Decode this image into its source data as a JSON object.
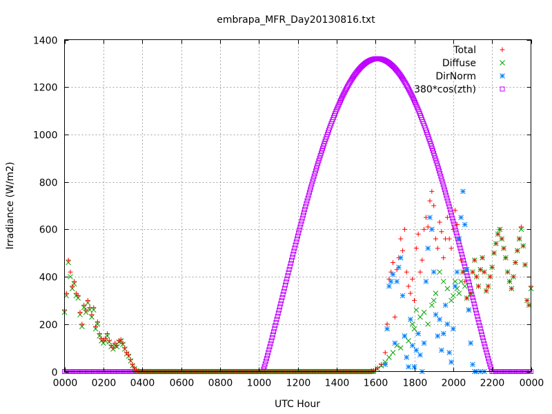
{
  "chart_data": {
    "type": "scatter",
    "title": "embrapa_MFR_Day20130816.txt",
    "xlabel": "UTC Hour",
    "ylabel": "Irradiance (W/m2)",
    "xlim": [
      0,
      24
    ],
    "ylim": [
      0,
      1400
    ],
    "x_ticks": [
      {
        "v": 0,
        "label": "0000"
      },
      {
        "v": 2,
        "label": "0200"
      },
      {
        "v": 4,
        "label": "0400"
      },
      {
        "v": 6,
        "label": "0600"
      },
      {
        "v": 8,
        "label": "0800"
      },
      {
        "v": 10,
        "label": "1000"
      },
      {
        "v": 12,
        "label": "1200"
      },
      {
        "v": 14,
        "label": "1400"
      },
      {
        "v": 16,
        "label": "1600"
      },
      {
        "v": 18,
        "label": "1800"
      },
      {
        "v": 20,
        "label": "2000"
      },
      {
        "v": 22,
        "label": "2200"
      },
      {
        "v": 24,
        "label": "0000"
      }
    ],
    "y_ticks": [
      {
        "v": 0,
        "label": "0"
      },
      {
        "v": 200,
        "label": "200"
      },
      {
        "v": 400,
        "label": "400"
      },
      {
        "v": 600,
        "label": "600"
      },
      {
        "v": 800,
        "label": "800"
      },
      {
        "v": 1000,
        "label": "1000"
      },
      {
        "v": 1200,
        "label": "1200"
      },
      {
        "v": 1400,
        "label": "1400"
      }
    ],
    "grid": true,
    "legend_position": "top-right",
    "series": [
      {
        "name": "Total",
        "marker": "plus",
        "color": "#ff0000",
        "points": [
          [
            0.0,
            260
          ],
          [
            0.1,
            330
          ],
          [
            0.2,
            470
          ],
          [
            0.3,
            420
          ],
          [
            0.4,
            360
          ],
          [
            0.5,
            380
          ],
          [
            0.6,
            330
          ],
          [
            0.7,
            320
          ],
          [
            0.8,
            250
          ],
          [
            0.9,
            200
          ],
          [
            1.0,
            280
          ],
          [
            1.1,
            260
          ],
          [
            1.2,
            300
          ],
          [
            1.3,
            270
          ],
          [
            1.4,
            240
          ],
          [
            1.5,
            270
          ],
          [
            1.6,
            190
          ],
          [
            1.7,
            210
          ],
          [
            1.8,
            160
          ],
          [
            1.9,
            140
          ],
          [
            2.0,
            130
          ],
          [
            2.1,
            140
          ],
          [
            2.2,
            160
          ],
          [
            2.3,
            130
          ],
          [
            2.4,
            110
          ],
          [
            2.5,
            100
          ],
          [
            2.6,
            120
          ],
          [
            2.7,
            110
          ],
          [
            2.8,
            130
          ],
          [
            2.9,
            135
          ],
          [
            3.0,
            120
          ],
          [
            3.1,
            100
          ],
          [
            3.2,
            80
          ],
          [
            3.3,
            70
          ],
          [
            3.4,
            50
          ],
          [
            3.5,
            30
          ],
          [
            3.6,
            15
          ],
          [
            3.7,
            5
          ],
          [
            15.9,
            5
          ],
          [
            16.1,
            15
          ],
          [
            16.3,
            30
          ],
          [
            16.5,
            80
          ],
          [
            16.6,
            200
          ],
          [
            16.7,
            390
          ],
          [
            16.8,
            420
          ],
          [
            16.9,
            460
          ],
          [
            17.0,
            230
          ],
          [
            17.1,
            430
          ],
          [
            17.2,
            480
          ],
          [
            17.3,
            560
          ],
          [
            17.4,
            510
          ],
          [
            17.5,
            600
          ],
          [
            17.6,
            420
          ],
          [
            17.7,
            360
          ],
          [
            17.8,
            330
          ],
          [
            17.9,
            390
          ],
          [
            18.0,
            300
          ],
          [
            18.1,
            520
          ],
          [
            18.2,
            580
          ],
          [
            18.3,
            420
          ],
          [
            18.4,
            470
          ],
          [
            18.5,
            600
          ],
          [
            18.6,
            650
          ],
          [
            18.7,
            610
          ],
          [
            18.8,
            720
          ],
          [
            18.9,
            760
          ],
          [
            19.0,
            700
          ],
          [
            19.1,
            560
          ],
          [
            19.2,
            520
          ],
          [
            19.3,
            630
          ],
          [
            19.4,
            590
          ],
          [
            19.5,
            480
          ],
          [
            19.6,
            560
          ],
          [
            19.7,
            650
          ],
          [
            19.8,
            560
          ],
          [
            19.9,
            520
          ],
          [
            20.0,
            600
          ],
          [
            20.1,
            680
          ],
          [
            20.2,
            620
          ],
          [
            20.3,
            560
          ],
          [
            20.4,
            470
          ],
          [
            20.5,
            420
          ],
          [
            20.6,
            380
          ],
          [
            20.7,
            310
          ],
          [
            20.8,
            260
          ],
          [
            20.9,
            330
          ],
          [
            21.0,
            420
          ],
          [
            21.1,
            470
          ],
          [
            21.2,
            400
          ],
          [
            21.3,
            360
          ],
          [
            21.4,
            430
          ],
          [
            21.5,
            480
          ],
          [
            21.6,
            420
          ],
          [
            21.7,
            340
          ],
          [
            21.8,
            360
          ],
          [
            21.9,
            400
          ],
          [
            22.0,
            440
          ],
          [
            22.1,
            500
          ],
          [
            22.2,
            540
          ],
          [
            22.3,
            580
          ],
          [
            22.4,
            600
          ],
          [
            22.5,
            560
          ],
          [
            22.6,
            520
          ],
          [
            22.7,
            480
          ],
          [
            22.8,
            420
          ],
          [
            22.9,
            380
          ],
          [
            23.0,
            350
          ],
          [
            23.1,
            400
          ],
          [
            23.2,
            460
          ],
          [
            23.3,
            510
          ],
          [
            23.4,
            560
          ],
          [
            23.5,
            610
          ],
          [
            23.6,
            530
          ],
          [
            23.7,
            450
          ],
          [
            23.8,
            300
          ],
          [
            23.9,
            280
          ],
          [
            24.0,
            360
          ]
        ]
      },
      {
        "name": "Diffuse",
        "marker": "cross",
        "color": "#00a000",
        "points": [
          [
            0.0,
            250
          ],
          [
            0.1,
            320
          ],
          [
            0.2,
            460
          ],
          [
            0.3,
            400
          ],
          [
            0.4,
            350
          ],
          [
            0.5,
            370
          ],
          [
            0.6,
            320
          ],
          [
            0.7,
            310
          ],
          [
            0.8,
            240
          ],
          [
            0.9,
            190
          ],
          [
            1.0,
            270
          ],
          [
            1.1,
            250
          ],
          [
            1.2,
            290
          ],
          [
            1.3,
            260
          ],
          [
            1.4,
            230
          ],
          [
            1.5,
            260
          ],
          [
            1.6,
            180
          ],
          [
            1.7,
            200
          ],
          [
            1.8,
            150
          ],
          [
            1.9,
            130
          ],
          [
            2.0,
            120
          ],
          [
            2.1,
            130
          ],
          [
            2.2,
            150
          ],
          [
            2.3,
            125
          ],
          [
            2.4,
            105
          ],
          [
            2.5,
            95
          ],
          [
            2.6,
            110
          ],
          [
            2.7,
            105
          ],
          [
            2.8,
            125
          ],
          [
            2.9,
            130
          ],
          [
            3.0,
            115
          ],
          [
            3.1,
            95
          ],
          [
            3.2,
            75
          ],
          [
            3.3,
            65
          ],
          [
            3.4,
            45
          ],
          [
            3.5,
            25
          ],
          [
            3.6,
            12
          ],
          [
            3.7,
            3
          ],
          [
            15.9,
            3
          ],
          [
            16.1,
            12
          ],
          [
            16.3,
            25
          ],
          [
            16.5,
            40
          ],
          [
            16.7,
            60
          ],
          [
            16.9,
            80
          ],
          [
            17.1,
            110
          ],
          [
            17.3,
            100
          ],
          [
            17.5,
            150
          ],
          [
            17.7,
            130
          ],
          [
            17.9,
            200
          ],
          [
            18.0,
            180
          ],
          [
            18.1,
            260
          ],
          [
            18.3,
            230
          ],
          [
            18.5,
            250
          ],
          [
            18.7,
            200
          ],
          [
            18.9,
            280
          ],
          [
            19.0,
            300
          ],
          [
            19.1,
            330
          ],
          [
            19.3,
            420
          ],
          [
            19.5,
            380
          ],
          [
            19.7,
            350
          ],
          [
            19.9,
            300
          ],
          [
            20.0,
            320
          ],
          [
            20.1,
            380
          ],
          [
            20.2,
            350
          ],
          [
            20.3,
            330
          ],
          [
            20.4,
            380
          ],
          [
            20.5,
            420
          ],
          [
            20.6,
            360
          ],
          [
            20.7,
            310
          ],
          [
            20.8,
            260
          ],
          [
            20.9,
            330
          ],
          [
            21.0,
            420
          ],
          [
            21.1,
            470
          ],
          [
            21.2,
            400
          ],
          [
            21.3,
            360
          ],
          [
            21.4,
            430
          ],
          [
            21.5,
            480
          ],
          [
            21.6,
            420
          ],
          [
            21.7,
            340
          ],
          [
            21.8,
            360
          ],
          [
            21.9,
            400
          ],
          [
            22.0,
            440
          ],
          [
            22.1,
            500
          ],
          [
            22.2,
            540
          ],
          [
            22.3,
            580
          ],
          [
            22.4,
            600
          ],
          [
            22.5,
            560
          ],
          [
            22.6,
            520
          ],
          [
            22.7,
            480
          ],
          [
            22.8,
            420
          ],
          [
            22.9,
            380
          ],
          [
            23.0,
            350
          ],
          [
            23.1,
            400
          ],
          [
            23.2,
            460
          ],
          [
            23.3,
            510
          ],
          [
            23.4,
            560
          ],
          [
            23.5,
            600
          ],
          [
            23.6,
            530
          ],
          [
            23.7,
            450
          ],
          [
            23.8,
            300
          ],
          [
            23.9,
            280
          ],
          [
            24.0,
            350
          ]
        ]
      },
      {
        "name": "DirNorm",
        "marker": "star",
        "color": "#0080ff",
        "points": [
          [
            16.5,
            30
          ],
          [
            16.6,
            180
          ],
          [
            16.7,
            360
          ],
          [
            16.8,
            380
          ],
          [
            16.9,
            410
          ],
          [
            17.0,
            120
          ],
          [
            17.1,
            380
          ],
          [
            17.2,
            440
          ],
          [
            17.3,
            480
          ],
          [
            17.4,
            320
          ],
          [
            17.5,
            150
          ],
          [
            17.6,
            60
          ],
          [
            17.7,
            20
          ],
          [
            17.8,
            220
          ],
          [
            17.9,
            110
          ],
          [
            18.0,
            20
          ],
          [
            18.1,
            90
          ],
          [
            18.2,
            160
          ],
          [
            18.3,
            70
          ],
          [
            18.4,
            0
          ],
          [
            18.5,
            120
          ],
          [
            18.6,
            380
          ],
          [
            18.7,
            520
          ],
          [
            18.8,
            650
          ],
          [
            18.9,
            600
          ],
          [
            19.0,
            420
          ],
          [
            19.1,
            240
          ],
          [
            19.2,
            150
          ],
          [
            19.3,
            220
          ],
          [
            19.4,
            90
          ],
          [
            19.5,
            160
          ],
          [
            19.6,
            280
          ],
          [
            19.7,
            200
          ],
          [
            19.8,
            80
          ],
          [
            19.9,
            40
          ],
          [
            20.0,
            180
          ],
          [
            20.1,
            360
          ],
          [
            20.2,
            420
          ],
          [
            20.3,
            560
          ],
          [
            20.4,
            650
          ],
          [
            20.5,
            760
          ],
          [
            20.6,
            620
          ],
          [
            20.7,
            430
          ],
          [
            20.8,
            260
          ],
          [
            20.9,
            120
          ],
          [
            21.0,
            30
          ],
          [
            21.1,
            0
          ],
          [
            21.2,
            0
          ],
          [
            21.4,
            0
          ],
          [
            21.6,
            0
          ]
        ]
      },
      {
        "name": "380*cos(zth)",
        "marker": "square",
        "color": "#c000ff",
        "curve": {
          "peak_hour": 16.1,
          "peak_value": 1320,
          "rise_hour": 10.2,
          "set_hour": 22.0
        }
      }
    ]
  }
}
